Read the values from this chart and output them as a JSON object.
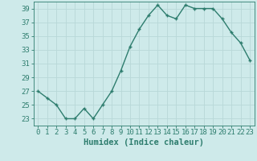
{
  "x": [
    0,
    1,
    2,
    3,
    4,
    5,
    6,
    7,
    8,
    9,
    10,
    11,
    12,
    13,
    14,
    15,
    16,
    17,
    18,
    19,
    20,
    21,
    22,
    23
  ],
  "y": [
    27,
    26,
    25,
    23,
    23,
    24.5,
    23,
    25,
    27,
    30,
    33.5,
    36,
    38,
    39.5,
    38,
    37.5,
    39.5,
    39,
    39,
    39,
    37.5,
    35.5,
    34,
    31.5
  ],
  "line_color": "#2e7d6e",
  "marker": "+",
  "marker_size": 3,
  "bg_color": "#ceeaea",
  "grid_color": "#b8d8d8",
  "axis_color": "#2e7d6e",
  "xlabel": "Humidex (Indice chaleur)",
  "xlabel_fontsize": 7.5,
  "tick_fontsize": 6.5,
  "ylim": [
    22,
    40
  ],
  "xlim": [
    -0.5,
    23.5
  ],
  "yticks": [
    23,
    25,
    27,
    29,
    31,
    33,
    35,
    37,
    39
  ],
  "xticks": [
    0,
    1,
    2,
    3,
    4,
    5,
    6,
    7,
    8,
    9,
    10,
    11,
    12,
    13,
    14,
    15,
    16,
    17,
    18,
    19,
    20,
    21,
    22,
    23
  ],
  "linewidth": 1.0
}
